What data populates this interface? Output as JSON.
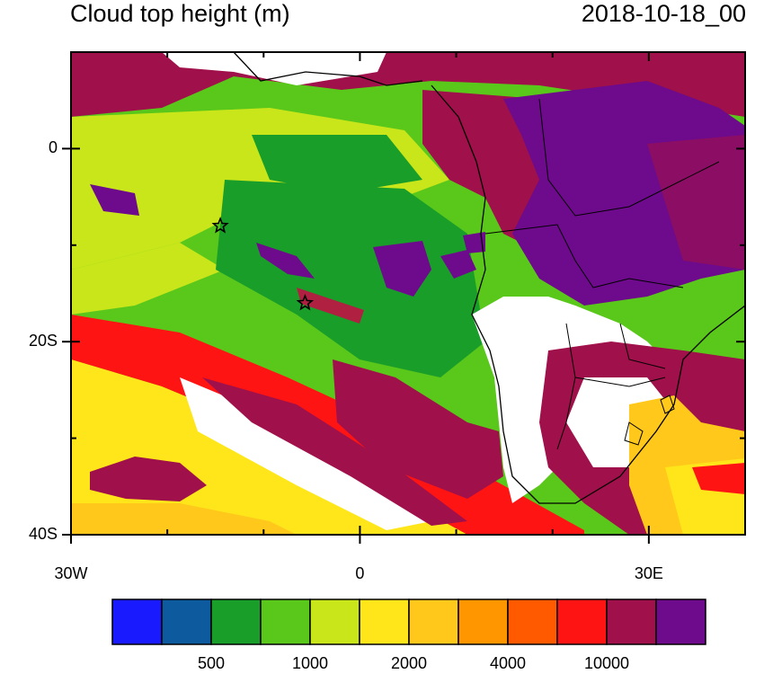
{
  "header": {
    "variable_title": "Cloud top height (m)",
    "timestamp": "2018-10-18_00"
  },
  "axes": {
    "lat_labels": [
      {
        "text": "0",
        "value": 0
      },
      {
        "text": "20S",
        "value": -20
      },
      {
        "text": "40S",
        "value": -40
      }
    ],
    "lon_labels": [
      {
        "text": "30W",
        "value": -30
      },
      {
        "text": "0",
        "value": 0
      },
      {
        "text": "30E",
        "value": 30
      }
    ],
    "lon_range": [
      -30,
      40
    ],
    "lat_range": [
      -40,
      10
    ]
  },
  "markers": [
    {
      "name": "star-marker-1",
      "lon": -14.5,
      "lat": -8
    },
    {
      "name": "star-marker-2",
      "lon": -5.7,
      "lat": -16
    }
  ],
  "colorbar": {
    "colors": [
      "#1a1aff",
      "#0d5a9e",
      "#1a9e2a",
      "#5ac81a",
      "#c8e61a",
      "#ffe61a",
      "#ffc81a",
      "#ff9600",
      "#ff5a00",
      "#ff1414",
      "#a0104a",
      "#6e0a8c"
    ],
    "labels": [
      "500",
      "1000",
      "2000",
      "4000",
      "10000"
    ]
  }
}
